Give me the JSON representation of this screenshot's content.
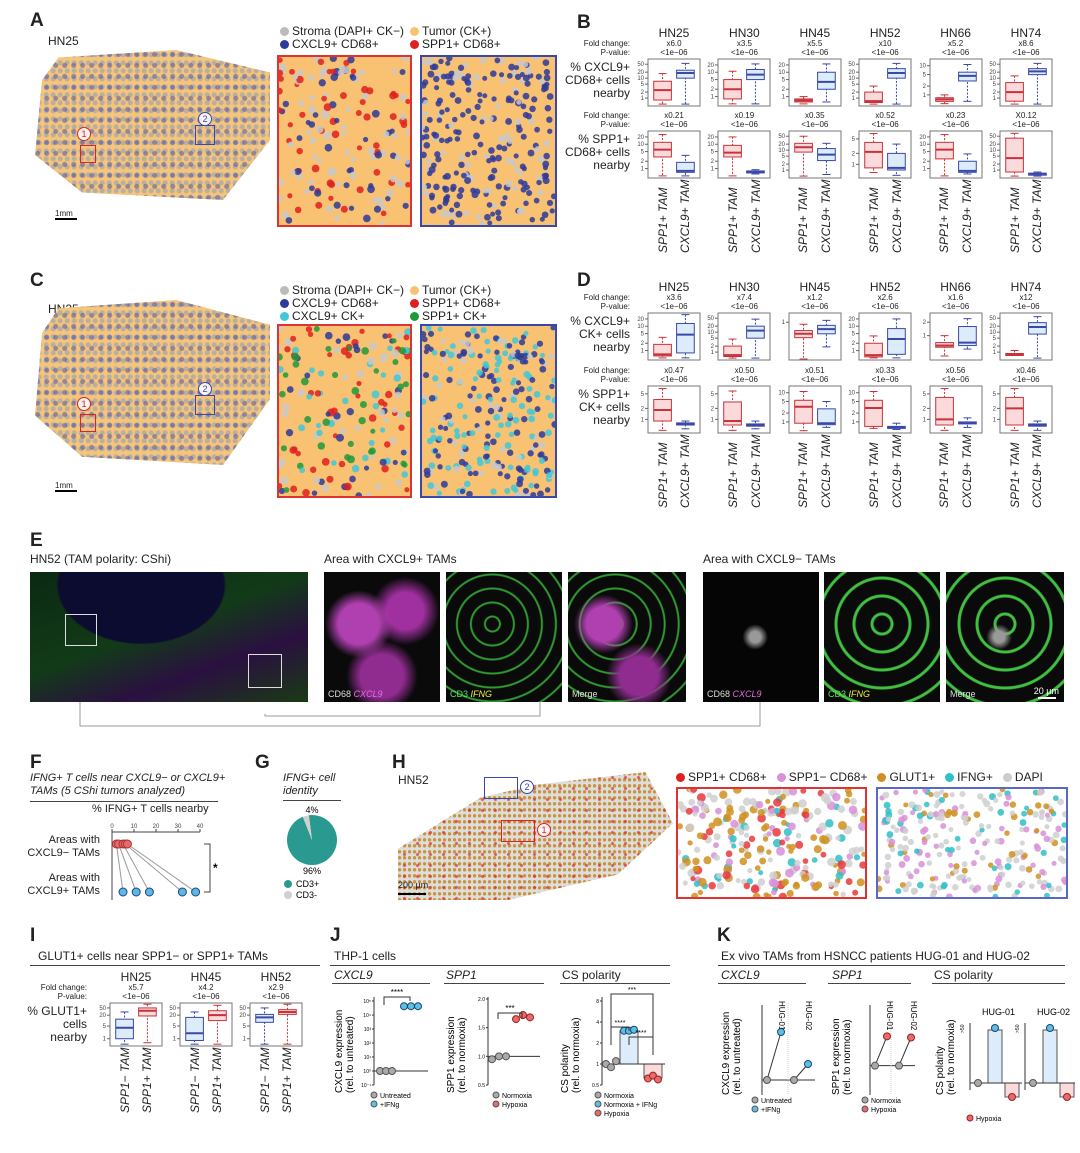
{
  "colors": {
    "red": "#c8323a",
    "red_fill": "#fadada",
    "blue": "#3a48a8",
    "blue_fill": "#dcecfb",
    "orange": "#f8c274",
    "grey": "#b8b8b8",
    "navy": "#2e3a9a",
    "cyan": "#40c8d8",
    "green": "#1f9a3a",
    "teal": "#2a9a90"
  },
  "panel_a": {
    "letter": "A",
    "sample": "HN25",
    "scale": "1mm",
    "inset1": "1",
    "inset2": "2",
    "legend": [
      "Stroma (DAPI+ CK−)",
      "Tumor (CK+)",
      "CXCL9+ CD68+",
      "SPP1+ CD68+"
    ]
  },
  "panel_c": {
    "letter": "C",
    "sample": "HN25",
    "scale": "1mm",
    "inset1": "1",
    "inset2": "2",
    "legend": [
      "Stroma (DAPI+ CK−)",
      "Tumor (CK+)",
      "CXCL9+ CD68+",
      "SPP1+ CD68+",
      "CXCL9+ CK+",
      "SPP1+ CK+"
    ]
  },
  "panel_b": {
    "letter": "B",
    "fc_label": "Fold change:",
    "p_label": "P-value:",
    "row_labels": [
      [
        "% CXCL9+",
        "CD68+ cells",
        "nearby"
      ],
      [
        "% SPP1+",
        "CD68+ cells",
        "nearby"
      ]
    ],
    "x_labels": [
      "SPP1+ TAM",
      "CXCL9+ TAM"
    ],
    "samples": [
      {
        "name": "HN25",
        "rows": [
          {
            "fc": "x6.0",
            "p": "<1e−06",
            "ticks": [
              1,
              2,
              5,
              10,
              20,
              50
            ],
            "boxes": [
              [
                0.5,
                0.8,
                2.5,
                7,
                17
              ],
              [
                0.5,
                10,
                18,
                25,
                55
              ]
            ]
          },
          {
            "fc": "x0.21",
            "p": "<1e−06",
            "ticks": [
              1,
              2,
              5,
              10,
              20
            ],
            "boxes": [
              [
                0.5,
                3,
                6,
                12,
                25
              ],
              [
                0.5,
                0.7,
                0.8,
                1.8,
                3.5
              ]
            ]
          }
        ]
      },
      {
        "name": "HN30",
        "rows": [
          {
            "fc": "x3.5",
            "p": "<1e−06",
            "ticks": [
              1,
              2,
              5,
              10,
              20
            ],
            "boxes": [
              [
                0.5,
                0.8,
                2,
                5,
                11
              ],
              [
                0.5,
                5,
                8,
                13,
                22
              ]
            ]
          },
          {
            "fc": "x0.19",
            "p": "<1e−06",
            "ticks": [
              1,
              2,
              5,
              10,
              20
            ],
            "boxes": [
              [
                0.5,
                3,
                4.5,
                9,
                20
              ],
              [
                0.6,
                0.7,
                0.75,
                0.8,
                0.9
              ]
            ]
          }
        ]
      },
      {
        "name": "HN45",
        "rows": [
          {
            "fc": "x5.5",
            "p": "<1e−06",
            "ticks": [
              1,
              2,
              5,
              10,
              20
            ],
            "boxes": [
              [
                0.5,
                0.6,
                0.7,
                0.8,
                1
              ],
              [
                0.6,
                2,
                4,
                10,
                22
              ]
            ]
          },
          {
            "fc": "x0.35",
            "p": "<1e−06",
            "ticks": [
              1,
              2,
              5,
              10,
              20,
              50
            ],
            "boxes": [
              [
                0.5,
                8,
                14,
                22,
                50
              ],
              [
                0.6,
                3,
                6,
                12,
                22
              ]
            ]
          }
        ]
      },
      {
        "name": "HN52",
        "rows": [
          {
            "fc": "x10",
            "p": "<1e−06",
            "ticks": [
              1,
              2,
              5,
              10,
              20,
              50
            ],
            "boxes": [
              [
                0.5,
                0.6,
                0.7,
                2,
                4
              ],
              [
                0.5,
                10,
                18,
                30,
                55
              ]
            ]
          },
          {
            "fc": "x0.52",
            "p": "<1e−06",
            "ticks": [
              1,
              2,
              5
            ],
            "boxes": [
              [
                0.6,
                0.8,
                2.2,
                4,
                7
              ],
              [
                0.5,
                0.7,
                0.8,
                2,
                3.6
              ]
            ]
          }
        ]
      },
      {
        "name": "HN66",
        "rows": [
          {
            "fc": "x5.2",
            "p": "<1e−06",
            "ticks": [
              1,
              2,
              5,
              10
            ],
            "boxes": [
              [
                0.5,
                0.6,
                0.7,
                0.8,
                1
              ],
              [
                0.6,
                3,
                4.5,
                6,
                11
              ]
            ]
          },
          {
            "fc": "x0.23",
            "p": "<1e−06",
            "ticks": [
              1,
              2,
              5,
              10,
              20
            ],
            "boxes": [
              [
                0.5,
                2.5,
                6,
                12,
                25
              ],
              [
                0.6,
                0.7,
                0.8,
                2,
                4
              ]
            ]
          }
        ]
      },
      {
        "name": "HN74",
        "rows": [
          {
            "fc": "x8.6",
            "p": "<1e−06",
            "ticks": [
              1,
              2,
              5,
              10,
              20,
              50
            ],
            "boxes": [
              [
                0.5,
                0.7,
                2,
                6,
                13
              ],
              [
                0.5,
                15,
                22,
                30,
                55
              ]
            ]
          },
          {
            "fc": "X0.12",
            "p": "<1e−06",
            "ticks": [
              1,
              2,
              5,
              10,
              20,
              50
            ],
            "boxes": [
              [
                0.5,
                0.8,
                4,
                40,
                70
              ],
              [
                0.5,
                0.6,
                0.65,
                0.7,
                0.8
              ]
            ]
          }
        ]
      }
    ]
  },
  "panel_d": {
    "letter": "D",
    "fc_label": "Fold change:",
    "p_label": "P-value:",
    "row_labels": [
      [
        "% CXCL9+",
        "CK+ cells",
        "nearby"
      ],
      [
        "% SPP1+",
        "CK+ cells",
        "nearby"
      ]
    ],
    "x_labels": [
      "SPP1+ TAM",
      "CXCL9+ TAM"
    ],
    "samples": [
      {
        "name": "HN25",
        "rows": [
          {
            "fc": "x3.6",
            "p": "<1e−06",
            "ticks": [
              1,
              2,
              5,
              10,
              20
            ],
            "boxes": [
              [
                0.5,
                0.6,
                0.7,
                1.8,
                3.5
              ],
              [
                0.5,
                0.8,
                4.5,
                13,
                30
              ]
            ]
          },
          {
            "fc": "x0.47",
            "p": "<1e−06",
            "ticks": [
              1,
              2,
              5
            ],
            "boxes": [
              [
                0.5,
                0.9,
                1.8,
                3.5,
                7
              ],
              [
                0.55,
                0.7,
                0.75,
                0.8,
                0.9
              ]
            ]
          }
        ]
      },
      {
        "name": "HN30",
        "rows": [
          {
            "fc": "x7.4",
            "p": "<1e−06",
            "ticks": [
              1,
              2,
              5,
              10,
              20,
              50
            ],
            "boxes": [
              [
                0.5,
                0.6,
                0.7,
                2,
                4.5
              ],
              [
                0.5,
                5,
                12,
                20,
                45
              ]
            ]
          },
          {
            "fc": "x0.50",
            "p": "<1e−06",
            "ticks": [
              1,
              2,
              5
            ],
            "boxes": [
              [
                0.5,
                0.7,
                0.9,
                3,
                6
              ],
              [
                0.55,
                0.65,
                0.7,
                0.75,
                0.9
              ]
            ]
          }
        ]
      },
      {
        "name": "HN45",
        "rows": [
          {
            "fc": "x1.2",
            "p": "<1e−06",
            "ticks": [
              1
            ],
            "ymin": 0.15,
            "boxes": [
              [
                0.15,
                0.45,
                0.55,
                0.65,
                0.9
              ],
              [
                0.28,
                0.55,
                0.7,
                0.85,
                1.1
              ]
            ]
          },
          {
            "fc": "x0.51",
            "p": "<1e−06",
            "ticks": [
              1,
              2,
              5,
              10
            ],
            "boxes": [
              [
                0.5,
                0.9,
                3.3,
                5.5,
                11
              ],
              [
                0.65,
                0.8,
                0.9,
                2.8,
                5
              ]
            ]
          }
        ]
      },
      {
        "name": "HN52",
        "rows": [
          {
            "fc": "x2.6",
            "p": "<1e−06",
            "ticks": [
              1,
              2,
              5,
              10,
              20
            ],
            "boxes": [
              [
                0.5,
                0.55,
                0.65,
                2,
                4
              ],
              [
                0.5,
                0.7,
                3,
                8,
                20
              ]
            ]
          },
          {
            "fc": "x0.33",
            "p": "<1e−06",
            "ticks": [
              1,
              2,
              5,
              10
            ],
            "boxes": [
              [
                0.6,
                0.7,
                3,
                5.5,
                11
              ],
              [
                0.55,
                0.6,
                0.65,
                0.7,
                0.9
              ]
            ]
          }
        ]
      },
      {
        "name": "HN66",
        "rows": [
          {
            "fc": "x1.6",
            "p": "<1e−06",
            "ticks": [
              1,
              2
            ],
            "ymin": 0.3,
            "boxes": [
              [
                0.35,
                0.55,
                0.6,
                0.7,
                1
              ],
              [
                0.5,
                0.6,
                0.7,
                1.6,
                2.4
              ]
            ]
          },
          {
            "fc": "x0.56",
            "p": "<1e−06",
            "ticks": [
              1,
              2,
              5
            ],
            "boxes": [
              [
                0.5,
                0.7,
                1,
                4,
                7
              ],
              [
                0.6,
                0.75,
                0.8,
                0.85,
                1.1
              ]
            ]
          }
        ]
      },
      {
        "name": "HN74",
        "rows": [
          {
            "fc": "x12",
            "p": "<1e−06",
            "ticks": [
              1,
              2,
              5,
              10,
              20,
              50
            ],
            "boxes": [
              [
                0.7,
                0.75,
                0.8,
                0.85,
                1.2
              ],
              [
                0.5,
                8,
                18,
                30,
                60
              ]
            ]
          },
          {
            "fc": "x0.46",
            "p": "<1e−06",
            "ticks": [
              1,
              2,
              5
            ],
            "boxes": [
              [
                0.5,
                0.7,
                2,
                4,
                7
              ],
              [
                0.5,
                0.65,
                0.7,
                0.75,
                0.9
              ]
            ]
          }
        ]
      }
    ]
  },
  "panel_e": {
    "letter": "E",
    "title": "HN52 (TAM polarity: CShi)",
    "area_pos": "Area with CXCL9+ TAMs",
    "area_neg": "Area with CXCL9− TAMs",
    "ch1": [
      "CD68",
      "CXCL9"
    ],
    "ch2": [
      "CD3",
      "IFNG"
    ],
    "merge": "Merge",
    "scale": "20 µm"
  },
  "panel_f": {
    "letter": "F",
    "title": "IFNG+ T cells near CXCL9− or CXCL9+ TAMs (5 CShi tumors analyzed)",
    "xlabel": "% IFNG+ T cells nearby",
    "ticks": [
      0,
      10,
      20,
      30,
      40
    ],
    "groups": [
      "Areas with CXCL9− TAMs",
      "Areas with CXCL9+ TAMs"
    ],
    "neg": [
      2,
      3,
      5,
      6,
      7
    ],
    "pos": [
      5,
      11,
      17,
      32,
      38
    ],
    "sig": "*"
  },
  "panel_g": {
    "letter": "G",
    "title": "IFNG+ cell identity",
    "slices": [
      {
        "label": "CD3+",
        "value": 96,
        "pct": "96%"
      },
      {
        "label": "CD3-",
        "value": 4,
        "pct": "4%"
      }
    ]
  },
  "panel_h": {
    "letter": "H",
    "sample": "HN52",
    "scale": "200 µm",
    "inset1": "1",
    "inset2": "2",
    "legend": [
      "SPP1+ CD68+",
      "SPP1− CD68+",
      "GLUT1+",
      "IFNG+",
      "DAPI"
    ]
  },
  "panel_i": {
    "letter": "I",
    "title": "GLUT1+ cells near SPP1− or SPP1+ TAMs",
    "fc_label": "Fold change:",
    "p_label": "P-value:",
    "row_labels": [
      [
        "% GLUT1+",
        "cells",
        "nearby"
      ]
    ],
    "x_labels": [
      "SPP1− TAM",
      "SPP1+ TAM"
    ],
    "samples": [
      {
        "name": "HN25",
        "rows": [
          {
            "fc": "x5.7",
            "p": "<1e−06",
            "ticks": [
              1,
              5,
              20,
              50
            ],
            "boxes": [
              [
                0.5,
                1,
                4,
                12,
                30
              ],
              [
                0.6,
                18,
                35,
                50,
                80
              ]
            ]
          }
        ]
      },
      {
        "name": "HN45",
        "rows": [
          {
            "fc": "x4.2",
            "p": "<1e−06",
            "ticks": [
              1,
              5,
              20,
              50
            ],
            "boxes": [
              [
                0.5,
                0.8,
                2,
                15,
                30
              ],
              [
                0.5,
                10,
                20,
                35,
                70
              ]
            ]
          }
        ]
      },
      {
        "name": "HN52",
        "rows": [
          {
            "fc": "x2.9",
            "p": "<1e−06",
            "ticks": [
              1,
              5,
              20,
              50
            ],
            "boxes": [
              [
                0.5,
                8,
                15,
                22,
                50
              ],
              [
                0.5,
                22,
                30,
                40,
                80
              ]
            ]
          }
        ]
      }
    ]
  },
  "panel_j": {
    "letter": "J",
    "title": "THP-1 cells",
    "cxcl9": {
      "title": "CXCL9",
      "ylabel": "CXCL9 expression (rel. to untreated)",
      "ticks": [
        "10⁻¹",
        "10⁰",
        "10¹",
        "10²",
        "10³",
        "10⁴",
        "10⁵"
      ],
      "untreated": [
        1,
        1,
        1
      ],
      "ifng": [
        50000,
        50000,
        50000
      ],
      "sig": "****",
      "legend": [
        "Untreated",
        "+IFNg"
      ]
    },
    "spp1": {
      "title": "SPP1",
      "ylabel": "SPP1 expression (rel. to normoxia)",
      "ticks": [
        "0.5",
        "1.0",
        "1.5",
        "2.0"
      ],
      "normoxia": [
        0.95,
        1.0,
        1.0
      ],
      "hypoxia": [
        1.65,
        1.72,
        1.68
      ],
      "sig": "***",
      "legend": [
        "Normoxia",
        "Hypoxia"
      ]
    },
    "cs": {
      "title": "CS polarity",
      "ylabel": "CS polarity (rel. to normoxia)",
      "ticks": [
        "0.5",
        "1",
        "2",
        "4",
        "8"
      ],
      "normoxia": [
        1,
        0.9,
        1.1
      ],
      "ifng": [
        3,
        3,
        3.1
      ],
      "hypoxia": [
        0.62,
        0.68,
        0.6
      ],
      "sig": [
        "***",
        "****",
        "****"
      ],
      "legend": [
        "Normoxia",
        "Normoxia + IFNg",
        "Hypoxia"
      ]
    }
  },
  "panel_k": {
    "letter": "K",
    "title": "Ex vivo TAMs from HSNCC patients HUG-01 and HUG-02",
    "cxcl9": {
      "title": "CXCL9",
      "ylabel": "CXCL9 expression (rel. to untreated)",
      "patients": [
        "HUG-01",
        "HUG-02"
      ],
      "treated": [
        1000,
        10
      ],
      "legend": [
        "Untreated",
        "+IFNg"
      ]
    },
    "spp1": {
      "title": "SPP1",
      "ylabel": "SPP1 expression (rel. to normoxia)",
      "patients": [
        "HUG-01",
        "HUG-02"
      ],
      "hypoxia": [
        1.5,
        1.48
      ],
      "legend": [
        "Normoxia",
        "Hypoxia"
      ]
    },
    "cs": {
      "title": "CS polarity",
      "ylabel": "CS polarity (rel. to normoxia)",
      "patients": [
        "HUG-01",
        "HUG-02"
      ],
      "top": ">50",
      "legend": [
        "Hypoxia"
      ]
    }
  }
}
